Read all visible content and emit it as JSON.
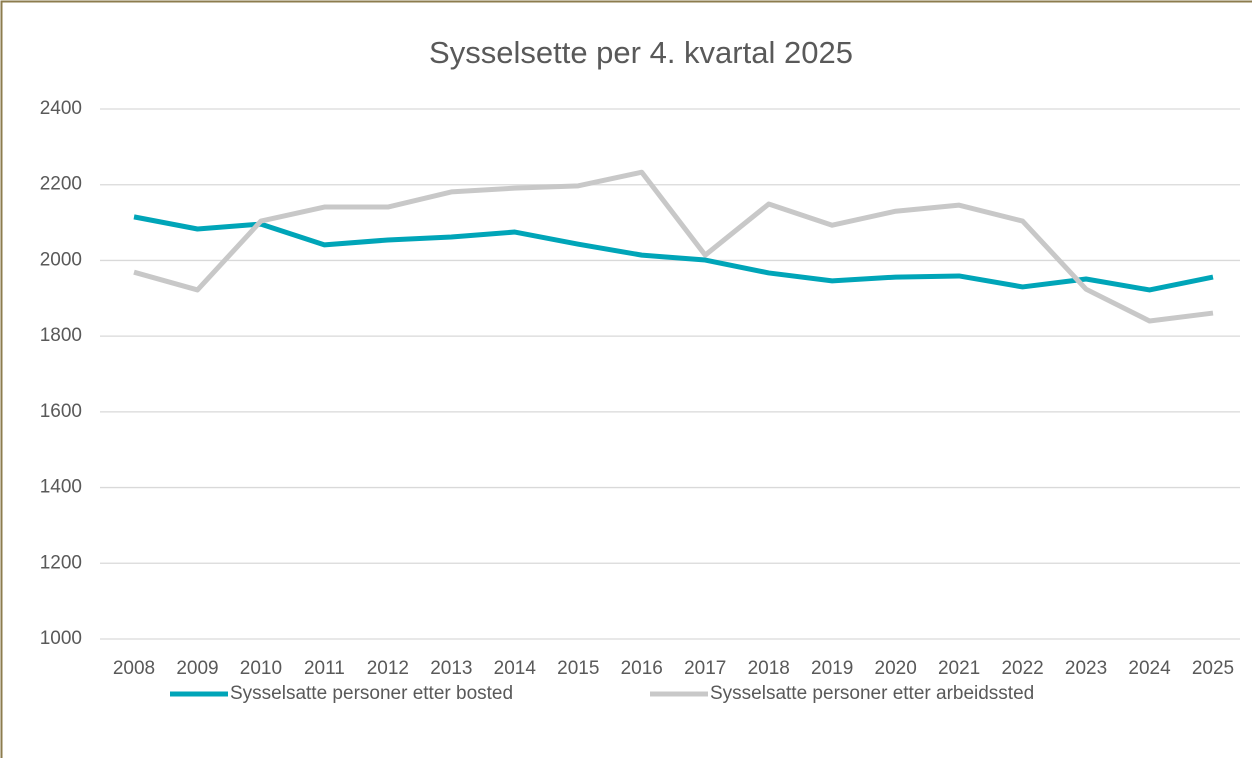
{
  "chart_data": {
    "type": "line",
    "title": "Sysselsette per 4. kvartal 2025",
    "x": [
      2008,
      2009,
      2010,
      2011,
      2012,
      2013,
      2014,
      2015,
      2016,
      2017,
      2018,
      2019,
      2020,
      2021,
      2022,
      2023,
      2024,
      2025
    ],
    "xlim": [
      2008,
      2025
    ],
    "series": [
      {
        "name": "Sysselsatte personer etter bosted",
        "color": "#00a5b8",
        "values": [
          2115,
          2083,
          2096,
          2041,
          2054,
          2062,
          2075,
          2043,
          2014,
          2001,
          1967,
          1946,
          1956,
          1959,
          1930,
          1951,
          1922,
          1956
        ]
      },
      {
        "name": "Sysselsatte personer etter arbeidssted",
        "color": "#c8c8c8",
        "values": [
          1969,
          1922,
          2104,
          2141,
          2141,
          2181,
          2191,
          2197,
          2233,
          2014,
          2149,
          2093,
          2130,
          2146,
          2104,
          1924,
          1840,
          1861
        ]
      }
    ],
    "ylim": [
      1000,
      2400
    ],
    "yticks": [
      1000,
      1200,
      1400,
      1600,
      1800,
      2000,
      2200,
      2400
    ],
    "grid": true,
    "legend": "bottom"
  }
}
